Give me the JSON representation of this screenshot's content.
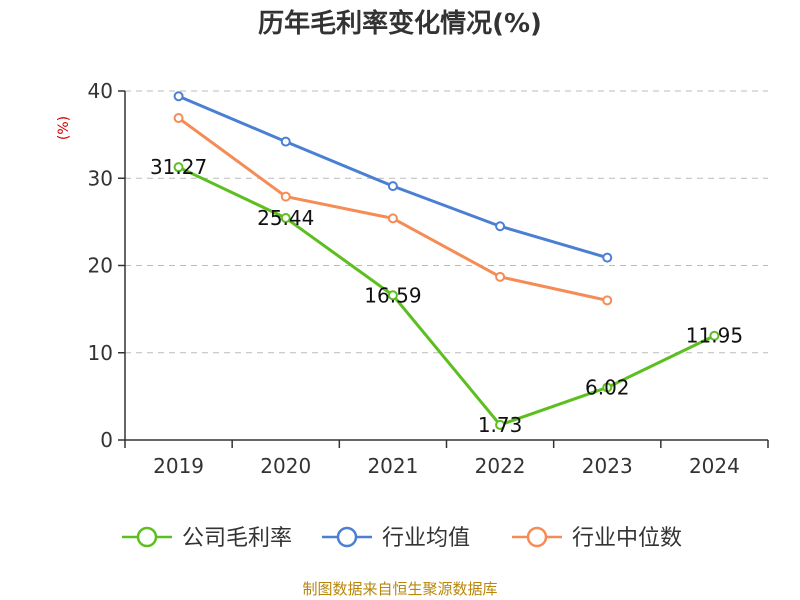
{
  "chart_data": {
    "type": "line",
    "title": "历年毛利率变化情况(%)",
    "ylabel": "(%)",
    "xlabel": "",
    "categories": [
      "2019",
      "2020",
      "2021",
      "2022",
      "2023",
      "2024"
    ],
    "ylim": [
      0,
      40
    ],
    "yticks": [
      0,
      10,
      20,
      30,
      40
    ],
    "grid": true,
    "legend_position": "bottom",
    "series": [
      {
        "name": "公司毛利率",
        "color": "#5cbf1f",
        "values": [
          31.27,
          25.44,
          16.59,
          1.73,
          6.02,
          11.95
        ],
        "labels": [
          "31.27",
          "25.44",
          "16.59",
          "1.73",
          "6.02",
          "11.95"
        ]
      },
      {
        "name": "行业均值",
        "color": "#4a7fd4",
        "values": [
          39.4,
          34.2,
          29.1,
          24.5,
          20.9,
          null
        ]
      },
      {
        "name": "行业中位数",
        "color": "#f58c55",
        "values": [
          36.9,
          27.9,
          25.4,
          18.7,
          16.0,
          null
        ]
      }
    ],
    "source": "制图数据来自恒生聚源数据库"
  }
}
